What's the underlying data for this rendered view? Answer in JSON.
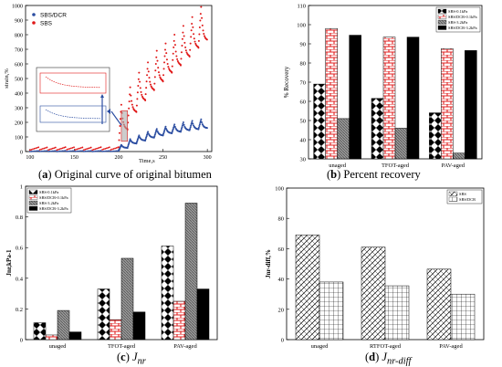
{
  "captions": {
    "a_letter": "a",
    "a_text": "Original curve of original bitumen",
    "b_letter": "b",
    "b_text": "Percent recovery",
    "c_letter": "c",
    "c_text": "J",
    "c_sub": "nr",
    "d_letter": "d",
    "d_text": "J",
    "d_sub": "nr-diff"
  },
  "colors": {
    "sbs_dcr": "#2b4da1",
    "sbs": "#e01818",
    "brick": "#e02020",
    "dark": "#000000",
    "gray": "#777777"
  },
  "chart_data": [
    {
      "id": "a",
      "type": "scatter",
      "xlabel": "Time,s",
      "ylabel": "strain,%",
      "xlim": [
        95,
        305
      ],
      "ylim": [
        0,
        1000
      ],
      "xticks": [
        100,
        150,
        200,
        250,
        300
      ],
      "yticks": [
        0,
        100,
        200,
        300,
        400,
        500,
        600,
        700,
        800,
        900,
        1000
      ],
      "legend_position": "top-left",
      "series": [
        {
          "name": "SBS/DCR",
          "color": "#2b4da1",
          "note": "low-stress cycles 100-200s plus 10 high-stress cycles 200-300s",
          "cycles_x_start": [
            200,
            210,
            220,
            230,
            240,
            250,
            260,
            270,
            280,
            290
          ],
          "cycle_peak_strain": [
            45,
            85,
            110,
            135,
            155,
            170,
            185,
            200,
            210,
            220
          ],
          "cycle_recovered_strain": [
            25,
            55,
            75,
            95,
            110,
            125,
            135,
            145,
            152,
            160
          ],
          "low_stress_strain_range": [
            0,
            5
          ]
        },
        {
          "name": "SBS",
          "color": "#e01818",
          "cycles_x_start": [
            200,
            210,
            220,
            230,
            240,
            250,
            260,
            270,
            280,
            290
          ],
          "cycle_peak_strain": [
            320,
            440,
            540,
            610,
            690,
            740,
            800,
            860,
            920,
            990
          ],
          "cycle_recovered_strain": [
            150,
            270,
            350,
            420,
            480,
            540,
            590,
            650,
            710,
            760
          ],
          "low_stress_strain_range": [
            10,
            30
          ]
        }
      ]
    },
    {
      "id": "b",
      "type": "bar",
      "ylabel": "% Recovery",
      "ylim": [
        30,
        110
      ],
      "yticks": [
        30,
        40,
        50,
        60,
        70,
        80,
        90,
        100,
        110
      ],
      "categories": [
        "unaged",
        "TFOT-aged",
        "PAV-aged"
      ],
      "legend_position": "top-right",
      "series": [
        {
          "name": "SBS-0.1kPa",
          "pattern": "diamond",
          "values": [
            69,
            61.5,
            54
          ]
        },
        {
          "name": "SBS/DCR-0.1kPa",
          "pattern": "brick",
          "values": [
            98,
            93.5,
            87.5
          ]
        },
        {
          "name": "SBS-3.2kPa",
          "pattern": "gray",
          "values": [
            51,
            46,
            33
          ]
        },
        {
          "name": "SBS/DCR-3.2kPa",
          "pattern": "black",
          "values": [
            94.5,
            93.5,
            86.5
          ]
        }
      ]
    },
    {
      "id": "c",
      "type": "bar",
      "ylabel": "Jnr,kPa-1",
      "ylim": [
        0,
        1.0
      ],
      "yticks": [
        0,
        0.2,
        0.4,
        0.6,
        0.8,
        1.0
      ],
      "yticklabels": [
        "0",
        "0.2",
        "0.4",
        "0.6",
        "0.8",
        "1"
      ],
      "categories": [
        "unaged",
        "TFOT-aged",
        "PAV-aged"
      ],
      "legend_position": "top-left",
      "series": [
        {
          "name": "SBS-0.1kPa",
          "pattern": "diamond",
          "values": [
            0.11,
            0.33,
            0.61
          ]
        },
        {
          "name": "SBS/DCR-0.1kPa",
          "pattern": "brick",
          "values": [
            0.03,
            0.13,
            0.25
          ]
        },
        {
          "name": "SBS-3.2kPa",
          "pattern": "gray",
          "values": [
            0.19,
            0.53,
            0.89
          ]
        },
        {
          "name": "SBS/DCR-3.2kPa",
          "pattern": "black",
          "values": [
            0.05,
            0.18,
            0.33
          ]
        }
      ]
    },
    {
      "id": "d",
      "type": "bar",
      "ylabel": "Jnr-diff,%",
      "ylim": [
        0,
        100
      ],
      "yticks": [
        0,
        20,
        40,
        60,
        80,
        100
      ],
      "categories": [
        "unaged",
        "RTFOT-aged",
        "PAV-aged"
      ],
      "legend_position": "top-right",
      "series": [
        {
          "name": "SBS",
          "pattern": "diag",
          "values": [
            69,
            61,
            46.5
          ]
        },
        {
          "name": "SBS/DCR",
          "pattern": "grid",
          "values": [
            38,
            35.5,
            30
          ]
        }
      ]
    }
  ]
}
